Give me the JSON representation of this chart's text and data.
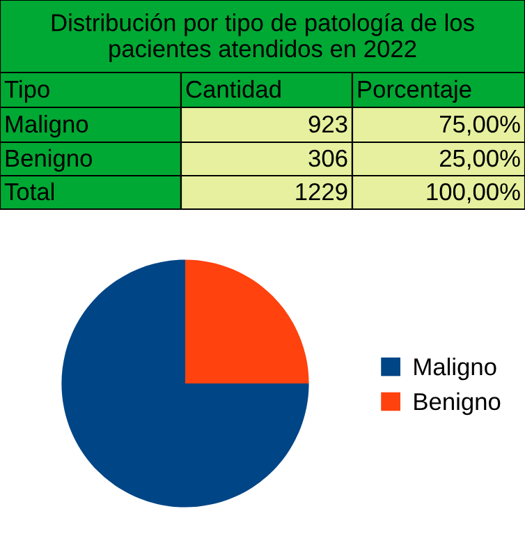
{
  "chart_data": {
    "type": "pie",
    "title": "Distribución por tipo de patología de los pacientes atendidos en 2022",
    "categories": [
      "Maligno",
      "Benigno"
    ],
    "values": [
      75,
      25
    ],
    "colors": [
      "#004586",
      "#ff420e"
    ],
    "legend": "right",
    "annotations": [
      "Tipo",
      "Cantidad",
      "Porcentaje",
      "923",
      "75,00%",
      "306",
      "25,00%",
      "Total",
      "1229",
      "100,00%"
    ]
  }
}
